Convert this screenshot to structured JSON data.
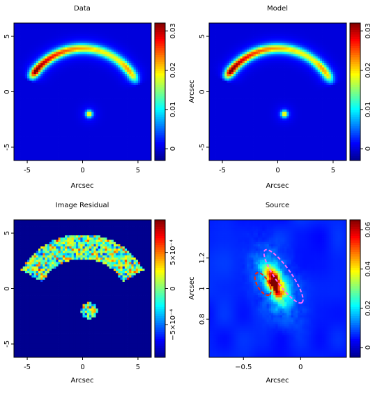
{
  "colors": {
    "background": "#00008f",
    "colormap": [
      "#00008f",
      "#0000ff",
      "#0080ff",
      "#00ffff",
      "#80ff80",
      "#ffff00",
      "#ff8000",
      "#ff0000",
      "#800000"
    ]
  },
  "chart_data": [
    {
      "type": "heatmap",
      "title": "Data",
      "xlabel": "Arcsec",
      "ylabel": "",
      "xlim": [
        -6.2,
        6.2
      ],
      "ylim": [
        -6.2,
        6.2
      ],
      "xticks": [
        -5,
        0,
        5
      ],
      "yticks": [
        -5,
        0,
        5
      ],
      "colorbar": {
        "range": [
          -0.003,
          0.032
        ],
        "ticks": [
          "0",
          "0.01",
          "0.02",
          "0.03"
        ],
        "tick_values": [
          0,
          0.01,
          0.02,
          0.03
        ]
      },
      "features": [
        {
          "kind": "arc",
          "center": [
            0.0,
            -1.5
          ],
          "radius": 5.4,
          "theta_deg": [
            30,
            145
          ],
          "peak_value": 0.031
        },
        {
          "kind": "spot",
          "center": [
            0.6,
            -2.0
          ],
          "peak_value": 0.02
        }
      ]
    },
    {
      "type": "heatmap",
      "title": "Model",
      "xlabel": "Arcsec",
      "ylabel": "Arcsec",
      "xlim": [
        -6.2,
        6.2
      ],
      "ylim": [
        -6.2,
        6.2
      ],
      "xticks": [
        -5,
        0,
        5
      ],
      "yticks": [
        -5,
        0,
        5
      ],
      "colorbar": {
        "range": [
          -0.003,
          0.032
        ],
        "ticks": [
          "0",
          "0.01",
          "0.02",
          "0.03"
        ],
        "tick_values": [
          0,
          0.01,
          0.02,
          0.03
        ]
      },
      "features": [
        {
          "kind": "arc",
          "center": [
            0.0,
            -1.5
          ],
          "radius": 5.4,
          "theta_deg": [
            30,
            145
          ],
          "peak_value": 0.031
        },
        {
          "kind": "spot",
          "center": [
            0.6,
            -2.0
          ],
          "peak_value": 0.02
        }
      ]
    },
    {
      "type": "heatmap",
      "title": "Image Residual",
      "xlabel": "Arcsec",
      "ylabel": "",
      "xlim": [
        -6.2,
        6.2
      ],
      "ylim": [
        -6.2,
        6.2
      ],
      "xticks": [
        -5,
        0,
        5
      ],
      "yticks": [
        -5,
        0,
        5
      ],
      "colorbar": {
        "range": [
          -0.00095,
          0.00095
        ],
        "ticks": [
          "−5×10⁻⁴",
          "0",
          "5×10⁻⁴"
        ],
        "tick_values": [
          -0.0005,
          0,
          0.0005
        ]
      },
      "features": [
        {
          "kind": "masked_arc",
          "center": [
            0.0,
            -1.5
          ],
          "radius": 5.3,
          "half_width": 1.1,
          "theta_deg": [
            30,
            150
          ]
        },
        {
          "kind": "masked_spot",
          "center": [
            0.6,
            -2.0
          ],
          "radius": 0.75
        }
      ]
    },
    {
      "type": "heatmap",
      "title": "Source",
      "xlabel": "Arcsec",
      "ylabel": "Arcsec",
      "xlim": [
        -0.8,
        0.4
      ],
      "ylim": [
        0.55,
        1.45
      ],
      "xticks": [
        -0.5,
        0
      ],
      "xtick_labels": [
        "−0.5",
        "0"
      ],
      "yticks": [
        0.8,
        1.0,
        1.2
      ],
      "ytick_labels": [
        "0.8",
        "1",
        "1.2"
      ],
      "colorbar": {
        "range": [
          -0.005,
          0.065
        ],
        "ticks": [
          "0",
          "0.02",
          "0.04",
          "0.06"
        ],
        "tick_values": [
          0,
          0.02,
          0.04,
          0.06
        ]
      },
      "features": [
        {
          "kind": "source_blob",
          "center": [
            -0.22,
            1.03
          ],
          "peak_value": 0.065
        }
      ],
      "contours": [
        {
          "name": "",
          "color": "#ff66ff",
          "center": [
            -0.15,
            1.08
          ],
          "a": 0.28,
          "b": 0.07,
          "angle_deg": -55
        },
        {
          "name": "",
          "color": "#ff2200",
          "center": [
            -0.33,
            1.03
          ],
          "a": 0.11,
          "b": 0.05,
          "angle_deg": -60
        }
      ]
    }
  ]
}
